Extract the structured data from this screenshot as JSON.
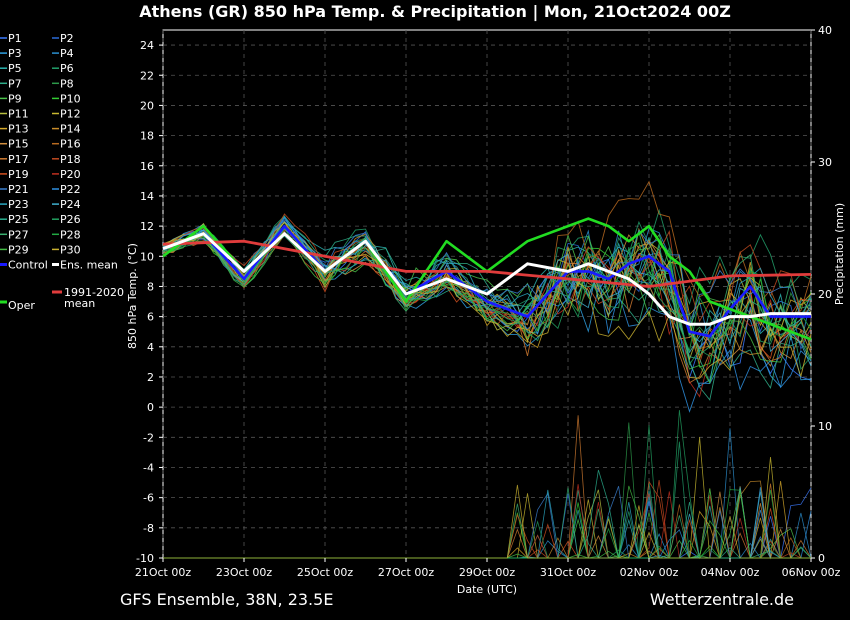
{
  "title": "Athens  (GR)  850 hPa Temp. & Precipitation | Mon, 21Oct2024 00Z",
  "footer_left": "GFS Ensemble, 38N, 23.5E",
  "footer_right": "Wetterzentrale.de",
  "colors": {
    "background": "#000000",
    "control": "#1a1aff",
    "ens_mean": "#ffffff",
    "clim_mean": "#e03c3c",
    "oper": "#22dd22",
    "grid": "#555555"
  },
  "chart_data": {
    "type": "line",
    "xlabel": "Date (UTC)",
    "ylabel": "850 hPa Temp. (°C)",
    "y2label": "Precipitation (mm)",
    "x_ticks": [
      "21Oct 00z",
      "23Oct 00z",
      "25Oct 00z",
      "27Oct 00z",
      "29Oct 00z",
      "31Oct 00z",
      "02Nov 00z",
      "04Nov 00z",
      "06Nov 00z"
    ],
    "x_range_days": [
      0,
      16
    ],
    "ylim": [
      -10,
      25
    ],
    "y_ticks": [
      -10,
      -8,
      -6,
      -4,
      -2,
      0,
      2,
      4,
      6,
      8,
      10,
      12,
      14,
      16,
      18,
      20,
      22,
      24
    ],
    "y2lim": [
      0,
      40
    ],
    "y2_ticks": [
      0,
      10,
      20,
      30,
      40
    ],
    "grid": true,
    "step_hours": 6,
    "legend": [
      [
        "P1",
        "P2"
      ],
      [
        "P3",
        "P4"
      ],
      [
        "P5",
        "P6"
      ],
      [
        "P7",
        "P8"
      ],
      [
        "P9",
        "P10"
      ],
      [
        "P11",
        "P12"
      ],
      [
        "P13",
        "P14"
      ],
      [
        "P15",
        "P16"
      ],
      [
        "P17",
        "P18"
      ],
      [
        "P19",
        "P20"
      ],
      [
        "P21",
        "P22"
      ],
      [
        "P23",
        "P24"
      ],
      [
        "P25",
        "P26"
      ],
      [
        "P27",
        "P28"
      ],
      [
        "P29",
        "P30"
      ],
      [
        "Control",
        "Ens. mean"
      ]
    ],
    "legend_clim": [
      "1991-2020",
      "mean"
    ],
    "legend_oper": "Oper",
    "member_colors": [
      "#3c7bff",
      "#2a6bd9",
      "#2fa0e0",
      "#2a8fd0",
      "#2bb3b0",
      "#22a06b",
      "#2fae8a",
      "#2c9a4a",
      "#4cc44c",
      "#33cc33",
      "#b8c040",
      "#c8b830",
      "#d4a82a",
      "#c88c2a",
      "#d49040",
      "#b86a20",
      "#d07a30",
      "#c04a20",
      "#d45020",
      "#c03020",
      "#3a7fd0",
      "#2f90e0",
      "#2aa8c0",
      "#3fb0d0",
      "#2ab090",
      "#22a060",
      "#3ab070",
      "#22aa44",
      "#44bb44",
      "#c8b030"
    ],
    "series": [
      {
        "name": "Control",
        "role": "control",
        "x_days": [
          0,
          1,
          2,
          3,
          4,
          5,
          6,
          7,
          8,
          9,
          10,
          10.5,
          11,
          11.5,
          12,
          12.5,
          13,
          13.5,
          14,
          14.5,
          15,
          15.5,
          16
        ],
        "values": [
          10.5,
          11.5,
          8.5,
          12,
          9,
          11,
          7.5,
          9,
          7,
          6,
          9,
          9,
          8.5,
          9.5,
          10,
          9,
          5,
          4.7,
          6.5,
          8,
          6,
          6,
          6
        ]
      },
      {
        "name": "Ens. mean",
        "role": "ens_mean",
        "x_days": [
          0,
          1,
          2,
          3,
          4,
          5,
          6,
          7,
          8,
          9,
          10,
          10.5,
          11,
          11.5,
          12,
          12.5,
          13,
          13.5,
          14,
          14.5,
          15,
          15.5,
          16
        ],
        "values": [
          10.5,
          11.5,
          9,
          11.5,
          9,
          11,
          7.5,
          8.5,
          7.5,
          9.5,
          9,
          9.5,
          9,
          8.5,
          7.5,
          6,
          5.5,
          5.5,
          6,
          6,
          6.2,
          6.2,
          6.2
        ]
      },
      {
        "name": "1991-2020 mean",
        "role": "clim",
        "x_days": [
          0,
          2,
          4,
          6,
          8,
          10,
          12,
          14,
          16
        ],
        "values": [
          10.8,
          11,
          10,
          9,
          9,
          8.5,
          8,
          8.7,
          8.8
        ]
      },
      {
        "name": "Oper",
        "role": "oper",
        "x_days": [
          0,
          1,
          2,
          3,
          4,
          5,
          6,
          7,
          8,
          9,
          10,
          10.5,
          11,
          11.5,
          12,
          12.5,
          13,
          13.5,
          14,
          14.5,
          15,
          15.5,
          16
        ],
        "values": [
          10,
          12,
          9,
          11.5,
          9,
          11,
          7,
          11,
          9,
          11,
          12,
          12.5,
          12,
          11,
          12,
          10,
          9,
          7,
          6.5,
          6,
          5.5,
          5,
          4.5
        ]
      }
    ]
  }
}
